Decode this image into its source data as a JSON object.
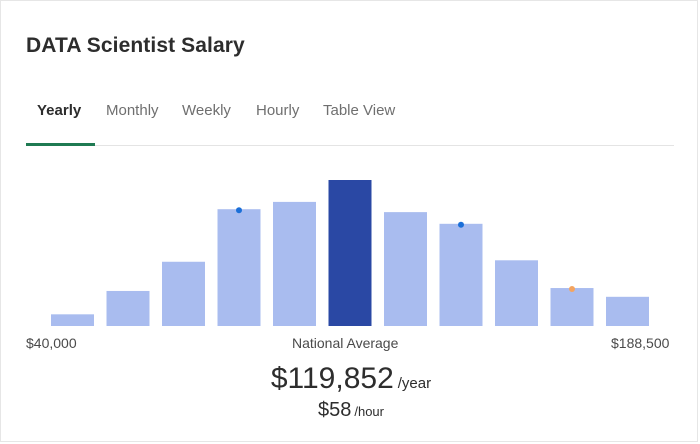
{
  "header": {
    "title": "DATA Scientist Salary"
  },
  "tabs": [
    {
      "label": "Yearly",
      "active": true
    },
    {
      "label": "Monthly",
      "active": false
    },
    {
      "label": "Weekly",
      "active": false
    },
    {
      "label": "Hourly",
      "active": false
    },
    {
      "label": "Table View",
      "active": false
    }
  ],
  "colors": {
    "bar": "#a9bcef",
    "highlight_bar": "#2a48a4",
    "marker_blue": "#1b6fd8",
    "marker_orange": "#f4a460",
    "tab_underline": "#1f7a52"
  },
  "axis": {
    "min_label": "$40,000",
    "center_label": "National Average",
    "max_label": "$188,500"
  },
  "summary": {
    "annual": "$119,852",
    "annual_unit": "/year",
    "hourly": "$58",
    "hourly_unit": "/hour"
  },
  "chart_data": {
    "type": "bar",
    "title": "",
    "xlabel": "",
    "ylabel": "",
    "categories": [
      "1",
      "2",
      "3",
      "4",
      "5",
      "6",
      "7",
      "8",
      "9",
      "10",
      "11"
    ],
    "values": [
      8,
      24,
      44,
      80,
      85,
      100,
      78,
      70,
      45,
      26,
      20
    ],
    "ylim": [
      0,
      100
    ],
    "highlight_index": 5,
    "markers": [
      {
        "bar_index": 3,
        "color": "blue"
      },
      {
        "bar_index": 7,
        "color": "blue"
      },
      {
        "bar_index": 9,
        "color": "orange"
      }
    ],
    "grid": false
  }
}
